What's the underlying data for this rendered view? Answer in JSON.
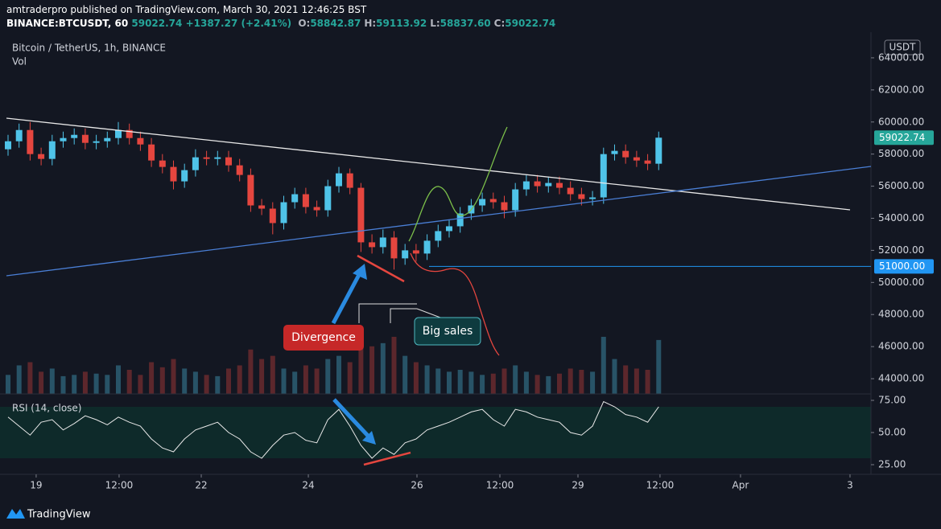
{
  "header": {
    "publisher": "amtraderpro published on TradingView.com, March 30, 2021 12:46:25 BST",
    "symbol": "BINANCE:BTCUSDT, 60",
    "last": "59022.74",
    "change": "+1387.27 (+2.41%)",
    "ohlc": [
      {
        "label": "O:",
        "value": "58842.87"
      },
      {
        "label": "H:",
        "value": "59113.92"
      },
      {
        "label": "L:",
        "value": "58837.60"
      },
      {
        "label": "C:",
        "value": "59022.74"
      }
    ]
  },
  "chart_data": {
    "type": "candlestick",
    "title": "Bitcoin / TetherUS, 1h, BINANCE",
    "currency": "USDT",
    "up_color": "#4fc3e8",
    "down_color": "#e5463f",
    "x": [
      0,
      1,
      2,
      3,
      4,
      5,
      6,
      7,
      8,
      9,
      10,
      11,
      12,
      13,
      14,
      15,
      16,
      17,
      18,
      19,
      20,
      21,
      22,
      23,
      24,
      25,
      26,
      27,
      28,
      29,
      30,
      31,
      32,
      33,
      34,
      35,
      36,
      37,
      38,
      39,
      40,
      41,
      42,
      43,
      44,
      45,
      46,
      47,
      48,
      49,
      50,
      51,
      52,
      53,
      54,
      55,
      56,
      57,
      58,
      59
    ],
    "open": [
      58300,
      58800,
      59500,
      58000,
      57700,
      58800,
      59000,
      59200,
      58700,
      58800,
      59000,
      59500,
      59000,
      58600,
      57600,
      57200,
      56300,
      57000,
      57800,
      57700,
      57800,
      57300,
      56700,
      54800,
      54600,
      53700,
      55000,
      55500,
      54700,
      54500,
      56000,
      56800,
      55900,
      52500,
      52200,
      52800,
      51500,
      52000,
      51800,
      52600,
      53200,
      53500,
      54300,
      54800,
      55200,
      55000,
      54500,
      55800,
      56300,
      56000,
      56200,
      55900,
      55500,
      55200,
      55300,
      58000,
      58200,
      57800,
      57600,
      57400
    ],
    "high": [
      59200,
      59900,
      60000,
      58400,
      59200,
      59400,
      59600,
      59600,
      59200,
      59400,
      60000,
      59900,
      59400,
      59000,
      58000,
      57600,
      57400,
      58300,
      58200,
      58200,
      58200,
      57700,
      57100,
      55200,
      55000,
      55400,
      55900,
      55900,
      55100,
      56400,
      57200,
      57100,
      56200,
      53000,
      53300,
      53200,
      52400,
      52400,
      53000,
      53600,
      53900,
      54700,
      55200,
      55600,
      55600,
      55400,
      56200,
      56700,
      56700,
      56600,
      56600,
      56300,
      55900,
      55700,
      58400,
      58600,
      58600,
      58200,
      58000,
      59400
    ],
    "low": [
      57900,
      58400,
      57600,
      57300,
      57300,
      58400,
      58600,
      58300,
      58300,
      58400,
      58600,
      58600,
      58200,
      57200,
      56800,
      55800,
      55900,
      56600,
      57300,
      57300,
      56900,
      56300,
      54400,
      54200,
      53000,
      53300,
      54600,
      54300,
      54100,
      54100,
      55600,
      55500,
      51900,
      51800,
      51800,
      50800,
      51100,
      51300,
      51400,
      52200,
      52800,
      53100,
      53900,
      54400,
      54600,
      54000,
      54100,
      55400,
      55600,
      55600,
      55500,
      55100,
      54800,
      54800,
      54900,
      57600,
      57400,
      57200,
      57000,
      57000
    ],
    "close": [
      58800,
      59500,
      58000,
      57700,
      58800,
      59000,
      59200,
      58700,
      58800,
      59000,
      59500,
      59000,
      58600,
      57600,
      57200,
      56300,
      57000,
      57800,
      57700,
      57800,
      57300,
      56700,
      54800,
      54600,
      53700,
      55000,
      55500,
      54700,
      54500,
      56000,
      56800,
      55900,
      52500,
      52200,
      52800,
      51500,
      52000,
      51800,
      52600,
      53200,
      53500,
      54300,
      54800,
      55200,
      55000,
      54500,
      55800,
      56300,
      56000,
      56200,
      55900,
      55500,
      55200,
      55300,
      58000,
      58200,
      57800,
      57600,
      57400,
      59022.74
    ],
    "xlim": [
      -0.73,
      78.25
    ],
    "xticks": [
      {
        "value": 2.55,
        "label": "19"
      },
      {
        "value": 10.07,
        "label": "12:00"
      },
      {
        "value": 17.52,
        "label": "22"
      },
      {
        "value": 27.23,
        "label": "24"
      },
      {
        "value": 37.08,
        "label": "26"
      },
      {
        "value": 44.6,
        "label": "12:00"
      },
      {
        "value": 51.68,
        "label": "29"
      },
      {
        "value": 59.12,
        "label": "12:00"
      },
      {
        "value": 66.42,
        "label": "Apr"
      },
      {
        "value": 76.35,
        "label": "3"
      }
    ],
    "ylim": [
      43050,
      65600
    ],
    "yticks": [
      {
        "value": 44000,
        "label": "44000.00"
      },
      {
        "value": 46000,
        "label": "46000.00"
      },
      {
        "value": 48000,
        "label": "48000.00"
      },
      {
        "value": 50000,
        "label": "50000.00"
      },
      {
        "value": 52000,
        "label": "52000.00"
      },
      {
        "value": 54000,
        "label": "54000.00"
      },
      {
        "value": 56000,
        "label": "56000.00"
      },
      {
        "value": 58000,
        "label": "58000.00"
      },
      {
        "value": 60000,
        "label": "60000.00"
      },
      {
        "value": 62000,
        "label": "62000.00"
      },
      {
        "value": 64000,
        "label": "64000.00"
      }
    ],
    "grid": false,
    "price_labels": [
      {
        "value": 59022.74,
        "label": "59022.74",
        "color": "#26a69a"
      },
      {
        "value": 51000,
        "label": "51000.00",
        "color": "#2196f3"
      }
    ],
    "volume": {
      "name": "Vol",
      "values": [
        30,
        45,
        50,
        35,
        40,
        28,
        30,
        35,
        32,
        30,
        45,
        38,
        30,
        50,
        42,
        55,
        40,
        35,
        30,
        28,
        40,
        45,
        70,
        55,
        60,
        40,
        35,
        45,
        40,
        55,
        60,
        50,
        95,
        75,
        80,
        90,
        60,
        50,
        45,
        40,
        35,
        38,
        35,
        30,
        32,
        40,
        45,
        35,
        30,
        28,
        32,
        40,
        38,
        35,
        90,
        55,
        45,
        40,
        38,
        85
      ]
    },
    "rsi": {
      "name": "RSI (14, close)",
      "band": [
        30,
        70
      ],
      "ylim": [
        17.5,
        80
      ],
      "yticks": [
        {
          "value": 75,
          "label": "75.00"
        },
        {
          "value": 50,
          "label": "50.00"
        },
        {
          "value": 25,
          "label": "25.00"
        }
      ],
      "values": [
        62,
        55,
        48,
        58,
        60,
        52,
        57,
        63,
        60,
        56,
        62,
        58,
        55,
        45,
        38,
        35,
        45,
        52,
        55,
        58,
        50,
        45,
        35,
        30,
        40,
        48,
        50,
        44,
        42,
        60,
        68,
        55,
        40,
        30,
        38,
        33,
        42,
        45,
        52,
        55,
        58,
        62,
        66,
        68,
        60,
        55,
        68,
        66,
        62,
        60,
        58,
        50,
        48,
        55,
        74,
        70,
        64,
        62,
        58,
        70
      ]
    },
    "annotations": [
      "Divergence",
      "Big sales"
    ]
  },
  "footer": "TradingView"
}
